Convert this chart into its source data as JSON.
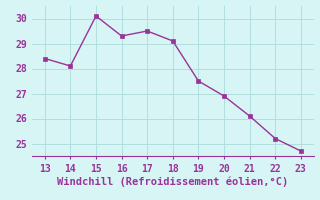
{
  "x": [
    13,
    14,
    15,
    16,
    17,
    18,
    19,
    20,
    21,
    22,
    23
  ],
  "y": [
    28.4,
    28.1,
    30.1,
    29.3,
    29.5,
    29.1,
    27.5,
    26.9,
    26.1,
    25.2,
    24.7
  ],
  "line_color": "#993399",
  "marker_color": "#993399",
  "background_color": "#d8f5f5",
  "grid_color": "#b0dede",
  "xlabel": "Windchill (Refroidissement éolien,°C)",
  "xlabel_color": "#993399",
  "tick_color": "#993399",
  "axis_color": "#993399",
  "xlim": [
    12.5,
    23.5
  ],
  "ylim": [
    24.5,
    30.5
  ],
  "xticks": [
    13,
    14,
    15,
    16,
    17,
    18,
    19,
    20,
    21,
    22,
    23
  ],
  "yticks": [
    25,
    26,
    27,
    28,
    29,
    30
  ],
  "xlabel_fontsize": 7.5,
  "tick_fontsize": 7.0,
  "line_width": 1.0,
  "marker_size": 2.5
}
